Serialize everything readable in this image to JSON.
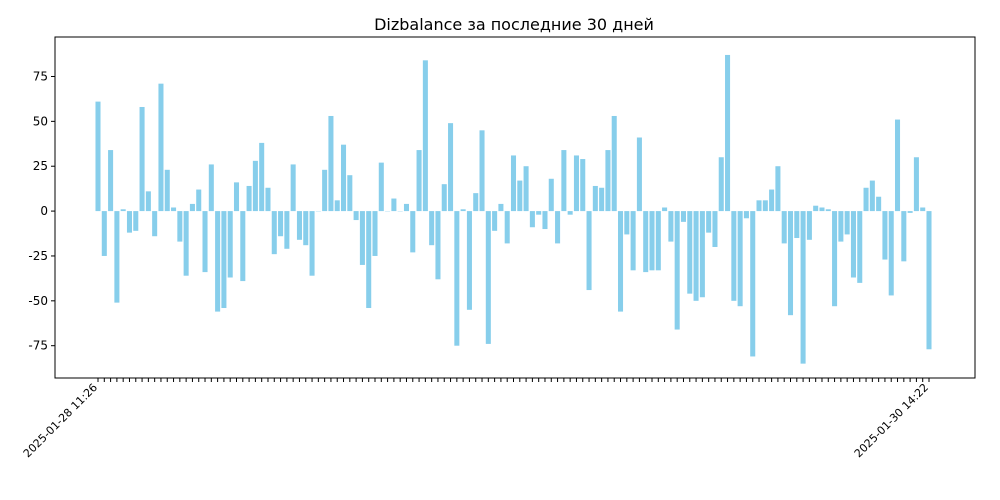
{
  "chart_data": {
    "type": "bar",
    "title": "Dizbalance за последние 30 дней",
    "xlabel": "",
    "ylabel": "",
    "ylim": [
      -93,
      97
    ],
    "yticks": [
      -75,
      -50,
      -25,
      0,
      25,
      50,
      75
    ],
    "bar_color": "#87CEEB",
    "grid": false,
    "x_first_label": "2025-01-28 11:26",
    "x_last_label": "2025-01-30 14:22",
    "values": [
      61,
      -25,
      34,
      -51,
      1,
      -12,
      -11,
      58,
      11,
      -14,
      71,
      23,
      2,
      -17,
      -36,
      4,
      12,
      -34,
      26,
      -56,
      -54,
      -37,
      16,
      -39,
      14,
      28,
      38,
      13,
      -24,
      -14,
      -21,
      26,
      -16,
      -19,
      -36,
      0,
      23,
      53,
      6,
      37,
      20,
      -5,
      -30,
      -54,
      -25,
      27,
      0,
      7,
      0,
      4,
      -23,
      34,
      84,
      -19,
      -38,
      15,
      49,
      -75,
      1,
      -55,
      10,
      45,
      -74,
      -11,
      4,
      -18,
      31,
      17,
      25,
      -9,
      -2,
      -10,
      18,
      -18,
      34,
      -2,
      31,
      29,
      -44,
      14,
      13,
      34,
      53,
      -56,
      -13,
      -33,
      41,
      -34,
      -33,
      -33,
      2,
      -17,
      -66,
      -6,
      -46,
      -50,
      -48,
      -12,
      -20,
      30,
      87,
      -50,
      -53,
      -4,
      -81,
      6,
      6,
      12,
      25,
      -18,
      -58,
      -15,
      -85,
      -16,
      3,
      2,
      1,
      -53,
      -17,
      -13,
      -37,
      -40,
      13,
      17,
      8,
      -27,
      -47,
      51,
      -28,
      -1,
      30,
      2,
      -77
    ]
  }
}
